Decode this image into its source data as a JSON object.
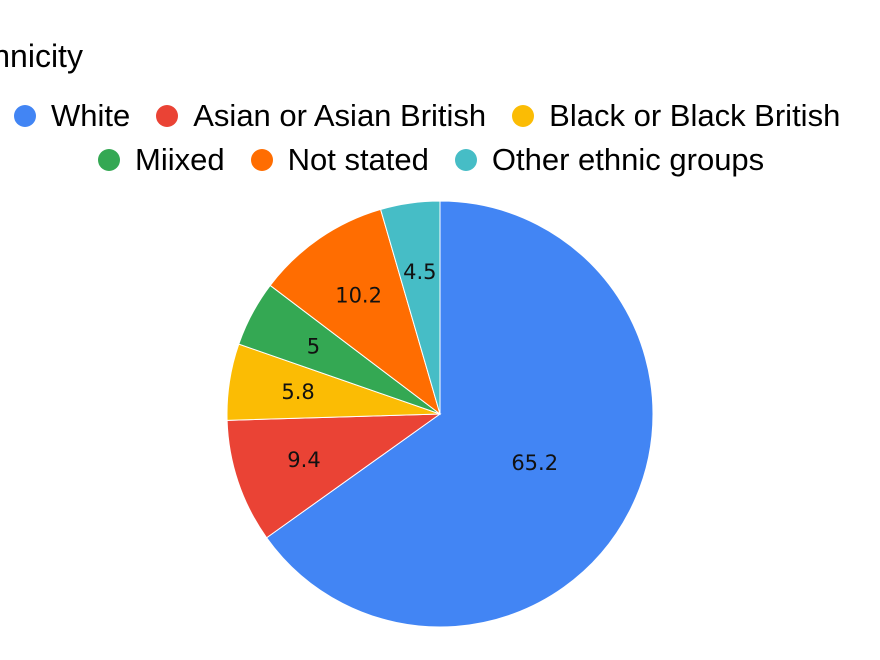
{
  "chart_data": {
    "type": "pie",
    "title": "Ethnicity",
    "categories": [
      "White",
      "Asian or Asian British",
      "Black or Black British",
      "Miixed",
      "Not stated",
      "Other ethnic groups"
    ],
    "values": [
      65.2,
      9.4,
      5.8,
      5,
      10.2,
      4.5
    ],
    "value_labels": [
      "65.2",
      "9.4",
      "5.8",
      "5",
      "10.2",
      "4.5"
    ],
    "colors": [
      "#4285F4",
      "#EA4335",
      "#FBBC04",
      "#34A853",
      "#FF6D01",
      "#46BDC6"
    ],
    "legend": {
      "placement": "top",
      "entries": [
        "White",
        "Asian or Asian British",
        "Black or Black British",
        "Miixed",
        "Not stated",
        "Other ethnic groups"
      ]
    },
    "start_angle": "12 o'clock",
    "direction": "clockwise"
  }
}
